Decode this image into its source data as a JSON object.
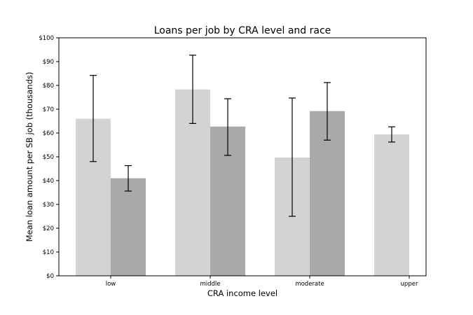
{
  "chart_data": {
    "type": "bar",
    "title": "Loans per job by CRA level and race",
    "xlabel": "CRA income level",
    "ylabel": "Mean loan amount per SB job (thousands)",
    "categories": [
      "low",
      "middle",
      "moderate",
      "upper"
    ],
    "ylim": [
      0,
      100
    ],
    "yticks": [
      0,
      10,
      20,
      30,
      40,
      50,
      60,
      70,
      80,
      90,
      100
    ],
    "ytick_labels": [
      "$0",
      "$10",
      "$20",
      "$30",
      "$40",
      "$50",
      "$60",
      "$70",
      "$80",
      "$90",
      "$100"
    ],
    "grid": false,
    "legend": false,
    "series": [
      {
        "color": "#d3d3d3",
        "values": [
          66,
          78.3,
          49.7,
          59.4
        ],
        "err_low": [
          48,
          64,
          25,
          56.2
        ],
        "err_high": [
          84.2,
          92.7,
          74.7,
          62.6
        ]
      },
      {
        "color": "#a9a9a9",
        "values": [
          41,
          62.7,
          69.2,
          null
        ],
        "err_low": [
          35.6,
          50.6,
          57,
          null
        ],
        "err_high": [
          46.3,
          74.4,
          81.2,
          null
        ]
      }
    ]
  }
}
